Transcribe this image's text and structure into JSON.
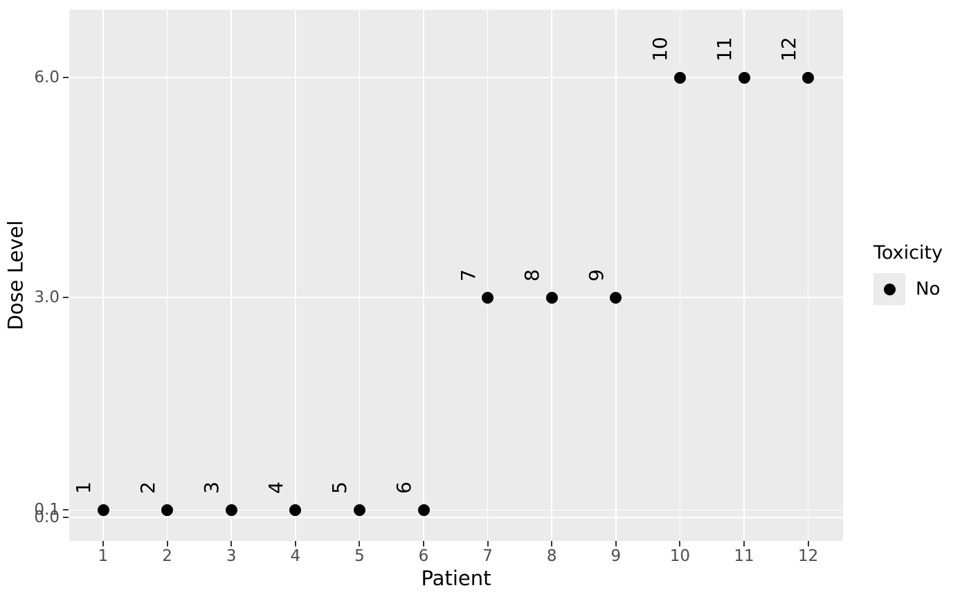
{
  "chart_data": {
    "type": "scatter",
    "title": "",
    "xlabel": "Patient",
    "ylabel": "Dose Level",
    "xlim": [
      0.45,
      12.55
    ],
    "ylim": [
      -0.32,
      6.93
    ],
    "grid": true,
    "x_ticks": [
      {
        "value": 1,
        "label": "1"
      },
      {
        "value": 2,
        "label": "2"
      },
      {
        "value": 3,
        "label": "3"
      },
      {
        "value": 4,
        "label": "4"
      },
      {
        "value": 5,
        "label": "5"
      },
      {
        "value": 6,
        "label": "6"
      },
      {
        "value": 7,
        "label": "7"
      },
      {
        "value": 8,
        "label": "8"
      },
      {
        "value": 9,
        "label": "9"
      },
      {
        "value": 10,
        "label": "10"
      },
      {
        "value": 11,
        "label": "11"
      },
      {
        "value": 12,
        "label": "12"
      }
    ],
    "y_ticks": [
      {
        "value": 0.0,
        "label": "0.0"
      },
      {
        "value": 0.1,
        "label": "0.1"
      },
      {
        "value": 3.0,
        "label": "3.0"
      },
      {
        "value": 6.0,
        "label": "6.0"
      }
    ],
    "points": [
      {
        "patient": 1,
        "dose": 0.1,
        "label": "1",
        "toxicity": "No"
      },
      {
        "patient": 2,
        "dose": 0.1,
        "label": "2",
        "toxicity": "No"
      },
      {
        "patient": 3,
        "dose": 0.1,
        "label": "3",
        "toxicity": "No"
      },
      {
        "patient": 4,
        "dose": 0.1,
        "label": "4",
        "toxicity": "No"
      },
      {
        "patient": 5,
        "dose": 0.1,
        "label": "5",
        "toxicity": "No"
      },
      {
        "patient": 6,
        "dose": 0.1,
        "label": "6",
        "toxicity": "No"
      },
      {
        "patient": 7,
        "dose": 3.0,
        "label": "7",
        "toxicity": "No"
      },
      {
        "patient": 8,
        "dose": 3.0,
        "label": "8",
        "toxicity": "No"
      },
      {
        "patient": 9,
        "dose": 3.0,
        "label": "9",
        "toxicity": "No"
      },
      {
        "patient": 10,
        "dose": 6.0,
        "label": "10",
        "toxicity": "No"
      },
      {
        "patient": 11,
        "dose": 6.0,
        "label": "11",
        "toxicity": "No"
      },
      {
        "patient": 12,
        "dose": 6.0,
        "label": "12",
        "toxicity": "No"
      }
    ],
    "legend": {
      "position": "right",
      "title": "Toxicity",
      "entries": [
        {
          "label": "No",
          "color": "#000000"
        }
      ]
    },
    "colors": {
      "panel_bg": "#EBEBEB",
      "grid": "#FFFFFF",
      "point": "#000000",
      "tick_mark": "#333333",
      "tick_label": "#4D4D4D",
      "axis_title": "#000000",
      "legend_key_bg": "#EBEBEB"
    }
  }
}
